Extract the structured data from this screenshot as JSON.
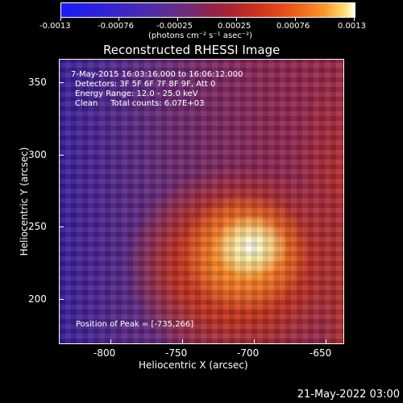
{
  "colorbar": {
    "tick_labels": [
      "-0.0013",
      "-0.00076",
      "-0.00025",
      "0.00025",
      "0.00076",
      "0.0013"
    ],
    "units": "(photons cm⁻² s⁻¹ asec⁻²)"
  },
  "title": "Reconstructed RHESSI Image",
  "info": {
    "time_range": "7-May-2015 16:03:16.000 to 16:06:12.000",
    "detectors": "Detectors: 3F 5F 6F 7F 8F 9F, Att 0",
    "energy": "Energy Range: 12.0 - 25.0 keV",
    "clean": "Clean     Total counts: 6.07E+03",
    "peak": "Position of Peak = [-735,266]"
  },
  "axes": {
    "x_title": "Heliocentric X (arcsec)",
    "y_title": "Heliocentric Y (arcsec)",
    "x_ticks": [
      "-800",
      "-750",
      "-700",
      "-650"
    ],
    "y_ticks": [
      "350",
      "300",
      "250",
      "200"
    ]
  },
  "footer": {
    "date": "21-May-2022 03:00"
  }
}
